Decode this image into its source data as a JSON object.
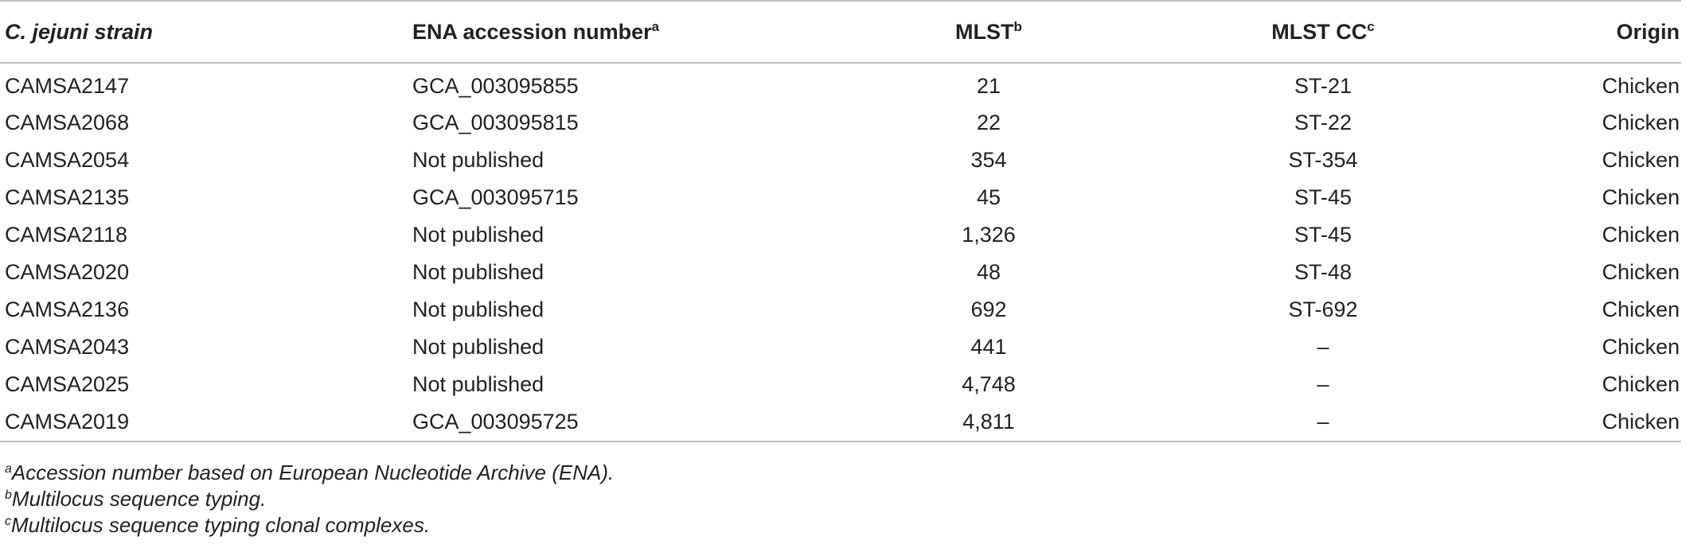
{
  "table": {
    "headers": [
      {
        "label": "C. jejuni strain",
        "sup": ""
      },
      {
        "label": "ENA accession number",
        "sup": "a"
      },
      {
        "label": "MLST",
        "sup": "b"
      },
      {
        "label": "MLST CC",
        "sup": "c"
      },
      {
        "label": "Origin",
        "sup": ""
      }
    ],
    "rows": [
      [
        "CAMSA2147",
        "GCA_003095855",
        "21",
        "ST-21",
        "Chicken"
      ],
      [
        "CAMSA2068",
        "GCA_003095815",
        "22",
        "ST-22",
        "Chicken"
      ],
      [
        "CAMSA2054",
        "Not published",
        "354",
        "ST-354",
        "Chicken"
      ],
      [
        "CAMSA2135",
        "GCA_003095715",
        "45",
        "ST-45",
        "Chicken"
      ],
      [
        "CAMSA2118",
        "Not published",
        "1,326",
        "ST-45",
        "Chicken"
      ],
      [
        "CAMSA2020",
        "Not published",
        "48",
        "ST-48",
        "Chicken"
      ],
      [
        "CAMSA2136",
        "Not published",
        "692",
        "ST-692",
        "Chicken"
      ],
      [
        "CAMSA2043",
        "Not published",
        "441",
        "–",
        "Chicken"
      ],
      [
        "CAMSA2025",
        "Not published",
        "4,748",
        "–",
        "Chicken"
      ],
      [
        "CAMSA2019",
        "GCA_003095725",
        "4,811",
        "–",
        "Chicken"
      ]
    ]
  },
  "footnotes": [
    {
      "mark": "a",
      "text": "Accession number based on European Nucleotide Archive (ENA)."
    },
    {
      "mark": "b",
      "text": "Multilocus sequence typing."
    },
    {
      "mark": "c",
      "text": "Multilocus sequence typing clonal complexes."
    }
  ]
}
